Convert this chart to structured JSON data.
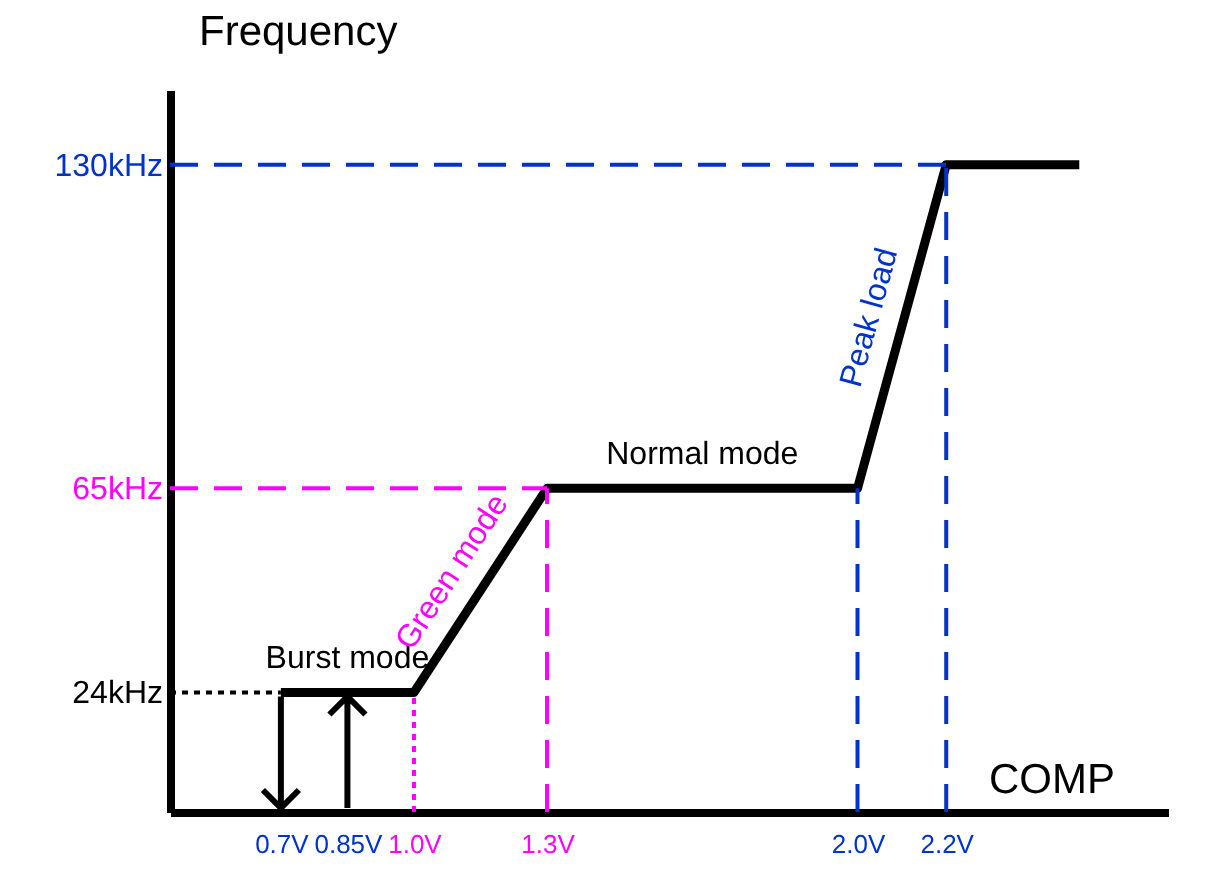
{
  "chart_data": {
    "type": "line",
    "xlabel": "COMP",
    "ylabel": "Frequency",
    "x": [
      0.7,
      1.0,
      1.3,
      2.0,
      2.2,
      2.5
    ],
    "series": [
      {
        "color": "#000000",
        "values": [
          24,
          24,
          65,
          65,
          130,
          130
        ]
      }
    ],
    "xlim": [
      0.45,
      2.7
    ],
    "ylim": [
      0,
      145
    ],
    "xticks": [
      {
        "value": 0.7,
        "label": "0.7V"
      },
      {
        "value": 0.85,
        "label": "0.85V"
      },
      {
        "value": 1.0,
        "label": "1.0V"
      },
      {
        "value": 1.3,
        "label": "1.3V"
      },
      {
        "value": 2.0,
        "label": "2.0V"
      },
      {
        "value": 2.2,
        "label": "2.2V"
      }
    ],
    "yticks": [
      {
        "value": 24,
        "label": "24kHz"
      },
      {
        "value": 65,
        "label": "65kHz"
      },
      {
        "value": 130,
        "label": "130kHz"
      }
    ],
    "ref_lines": [
      {
        "axis": "y",
        "value": 24,
        "color": "#000000",
        "line_style": "dotted"
      },
      {
        "axis": "y",
        "value": 65,
        "color": "#ff00ff",
        "line_style": "dashed"
      },
      {
        "axis": "y",
        "value": 130,
        "color": "#0033cc",
        "line_style": "dashed"
      },
      {
        "axis": "x",
        "value": 1.0,
        "color": "#ff00ff",
        "line_style": "dotted"
      },
      {
        "axis": "x",
        "value": 1.3,
        "color": "#ff00ff",
        "line_style": "dashed"
      },
      {
        "axis": "x",
        "value": 2.0,
        "color": "#0033cc",
        "line_style": "dashed"
      },
      {
        "axis": "x",
        "value": 2.2,
        "color": "#0033cc",
        "line_style": "dashed"
      }
    ],
    "annotations": [
      {
        "text": "Burst mode",
        "x": 0.85,
        "y": 24
      },
      {
        "text": "Green mode",
        "x": 1.15,
        "y": 44.5
      },
      {
        "text": "Normal mode",
        "x": 1.65,
        "y": 65
      },
      {
        "text": "Peak load",
        "x": 2.1,
        "y": 97.5
      }
    ],
    "grid": false,
    "legend": false,
    "marker": "none",
    "line_style": "solid"
  }
}
